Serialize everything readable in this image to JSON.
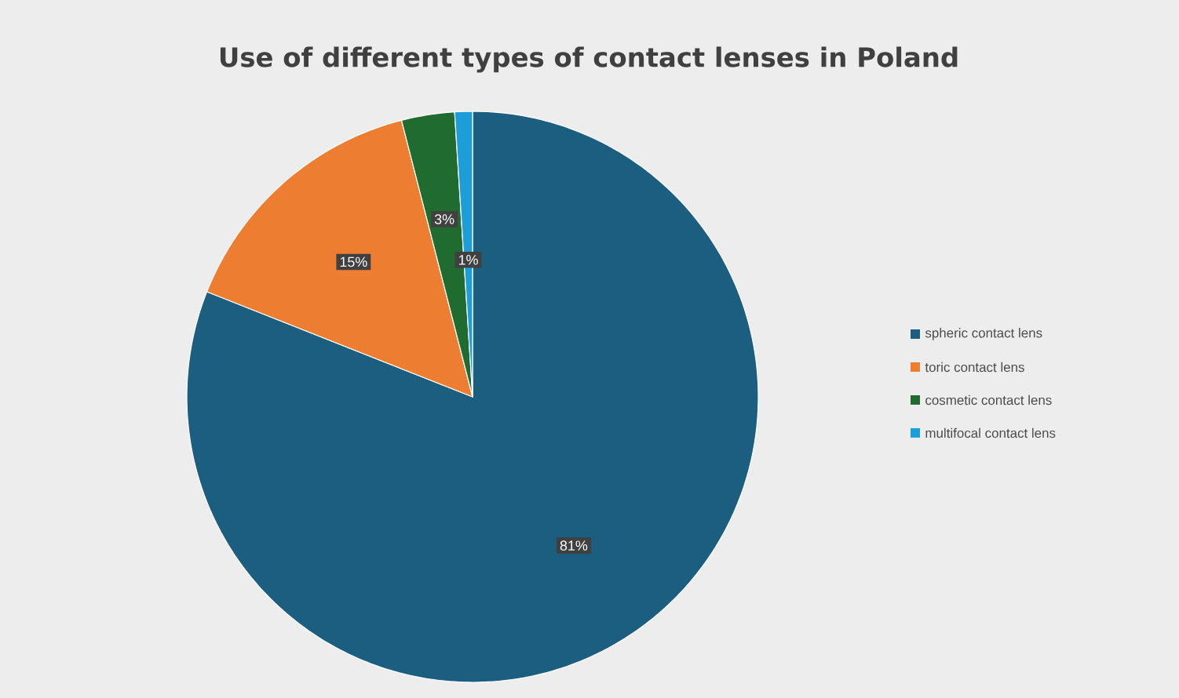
{
  "chart_data": {
    "type": "pie",
    "title": "Use of different types of contact lenses in Poland",
    "categories": [
      "spheric contact lens",
      "toric contact lens",
      "cosmetic contact lens",
      "multifocal contact lens"
    ],
    "values": [
      81,
      15,
      3,
      1
    ],
    "colors": [
      "#1b5e80",
      "#ed7d31",
      "#1f6b30",
      "#1d9ed9"
    ],
    "value_labels": [
      "81%",
      "15%",
      "3%",
      "1%"
    ],
    "legend": "right"
  }
}
